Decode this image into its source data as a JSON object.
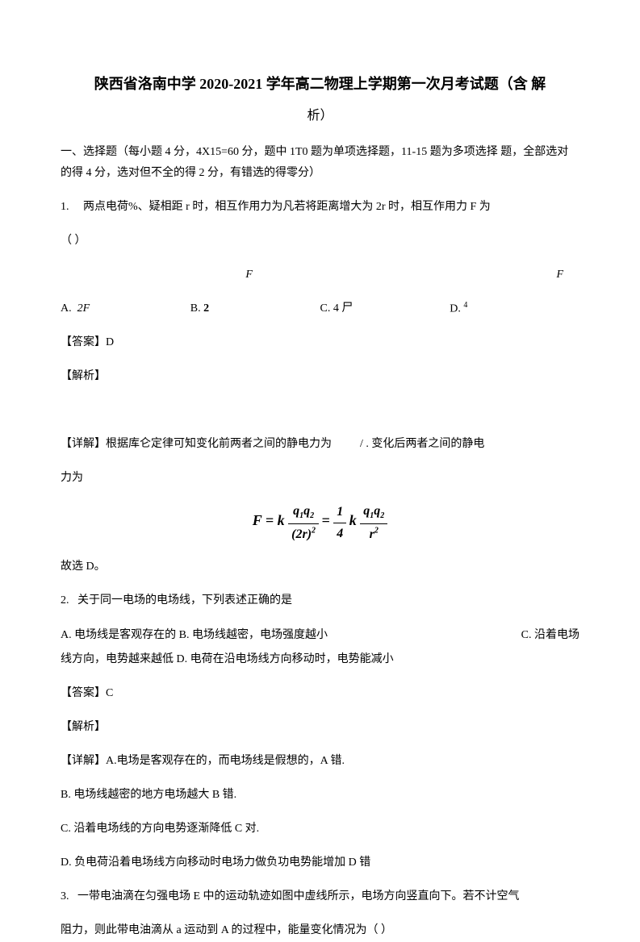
{
  "title_line1": "陕西省洛南中学 2020-2021 学年高二物理上学期第一次月考试题（含 解",
  "title_line2": "析）",
  "section_header": "一、选择题（每小题 4 分，4X15=60 分，题中 1T0 题为单项选择题，11-15 题为多项选择 题，全部选对的得 4 分，选对但不全的得 2 分，有错选的得零分）",
  "q1": {
    "number": "1.",
    "text": "两点电荷%、疑相距 r 时，相互作用力为凡若将距离增大为 2r 时，相互作用力 F 为",
    "paren": "（ ）",
    "opt_a": "A.  2F",
    "opt_b_prefix": "B. ",
    "opt_b_val": "2",
    "opt_c": "C.  4 尸",
    "opt_d_prefix": "D. ",
    "opt_d_val": "4",
    "f_label": "F",
    "answer": "【答案】D",
    "analysis": "【解析】",
    "detail": "【详解】根据库仑定律可知变化前两者之间的静电力为",
    "detail_mid": "/ . 变化后两者之间的静电",
    "detail_end": "力为",
    "conclusion": "故选 D。"
  },
  "q2": {
    "number": "2.",
    "text": "关于同一电场的电场线，下列表述正确的是",
    "opt_a": "A.  电场线是客观存在的 B. 电场线越密，电场强度越小",
    "opt_c": "C. 沿着电场",
    "line2": "线方向，电势越来越低     D. 电荷在沿电场线方向移动时，电势能减小",
    "answer": "【答案】C",
    "analysis": "【解析】",
    "detail_a": "【详解】A.电场是客观存在的，而电场线是假想的，A 错.",
    "detail_b": "B.  电场线越密的地方电场越大 B 错.",
    "detail_c": "C.  沿着电场线的方向电势逐渐降低 C 对.",
    "detail_d": "D.  负电荷沿着电场线方向移动时电场力做负功电势能增加 D 错"
  },
  "q3": {
    "number": "3.",
    "text": "一带电油滴在匀强电场 E 中的运动轨迹如图中虚线所示，电场方向竖直向下。若不计空气",
    "line2": "阻力，则此带电油滴从 a 运动到 A 的过程中，能量变化情况为（        ）"
  }
}
